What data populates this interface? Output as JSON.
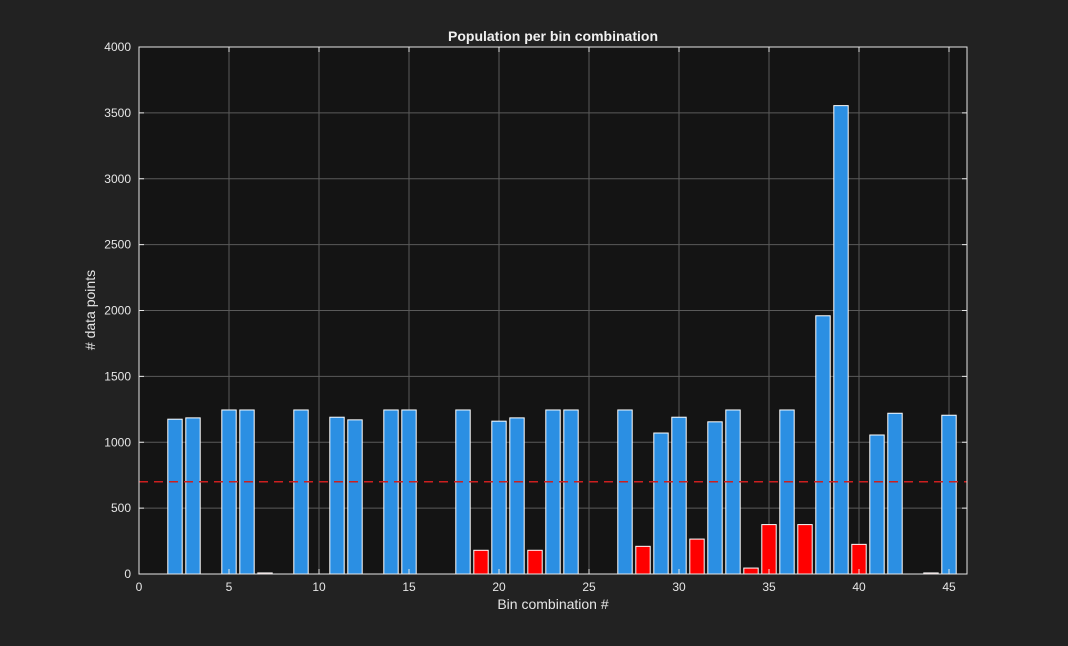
{
  "colors": {
    "figure_background": "#222222",
    "axes_background": "#141414",
    "axes_edge": "#e6e6e6",
    "grid": "#5a5a5a",
    "text": "#e6e6e6",
    "bar_above_threshold": "#2b8fe3",
    "bar_below_threshold": "#ff0000",
    "bar_edge": "#ffffff",
    "threshold_line": "#cc1f1f"
  },
  "chart_data": {
    "type": "bar",
    "title": "Population per bin combination",
    "xlabel": "Bin combination #",
    "ylabel": "# data points",
    "xlim": [
      0,
      46
    ],
    "ylim": [
      0,
      4000
    ],
    "xticks": [
      0,
      5,
      10,
      15,
      20,
      25,
      30,
      35,
      40,
      45
    ],
    "yticks": [
      0,
      500,
      1000,
      1500,
      2000,
      2500,
      3000,
      3500,
      4000
    ],
    "grid": true,
    "threshold": 700,
    "threshold_style": "dashed",
    "x": [
      1,
      2,
      3,
      4,
      5,
      6,
      7,
      8,
      9,
      10,
      11,
      12,
      13,
      14,
      15,
      16,
      17,
      18,
      19,
      20,
      21,
      22,
      23,
      24,
      25,
      26,
      27,
      28,
      29,
      30,
      31,
      32,
      33,
      34,
      35,
      36,
      37,
      38,
      39,
      40,
      41,
      42,
      43,
      44,
      45
    ],
    "values": [
      0,
      1175,
      1185,
      0,
      1245,
      1245,
      8,
      0,
      1245,
      0,
      1190,
      1170,
      0,
      1245,
      1245,
      0,
      0,
      1245,
      180,
      1160,
      1185,
      180,
      1245,
      1245,
      0,
      0,
      1245,
      210,
      1070,
      1190,
      265,
      1155,
      1245,
      45,
      375,
      1245,
      375,
      1960,
      3555,
      225,
      1055,
      1220,
      0,
      8,
      1205
    ]
  }
}
